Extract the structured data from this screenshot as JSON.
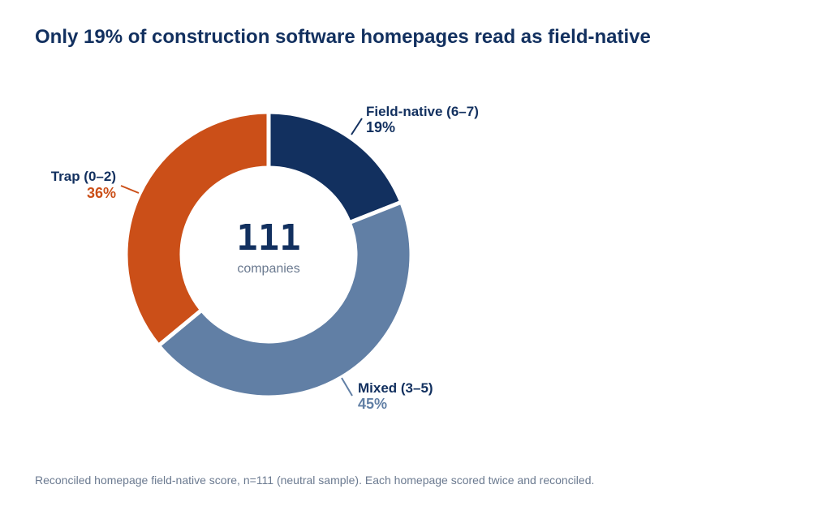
{
  "title": "Only 19% of construction software homepages read as field-native",
  "footnote": "Reconciled homepage field-native score, n=111 (neutral sample). Each homepage scored twice and reconciled.",
  "chart_data": {
    "type": "pie",
    "donut": true,
    "title": "Only 19% of construction software homepages read as field-native",
    "center_value": "111",
    "center_label": "companies",
    "segments": [
      {
        "label": "Field-native (6–7)",
        "percent_label": "19%",
        "value": 19,
        "color": "#12305f",
        "pct_color": "#12305f"
      },
      {
        "label": "Mixed (3–5)",
        "percent_label": "45%",
        "value": 45,
        "color": "#617fa5",
        "pct_color": "#617fa5"
      },
      {
        "label": "Trap (0–2)",
        "percent_label": "36%",
        "value": 36,
        "color": "#cb4f18",
        "pct_color": "#cb4f18"
      }
    ]
  }
}
